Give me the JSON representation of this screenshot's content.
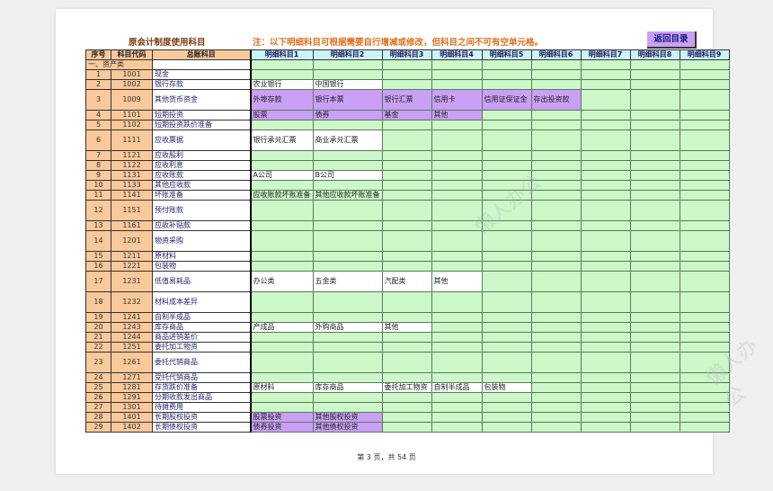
{
  "title": "原会计制度使用科目",
  "note": "注：以下明细科目可根据需要自行增减或修改，但科目之间不可有空单元格。",
  "back_button": "返回目录",
  "headers": {
    "seq": "序号",
    "code": "科目代码",
    "name": "总账科目",
    "details": [
      "明细科目1",
      "明细科目2",
      "明细科目3",
      "明细科目4",
      "明细科目5",
      "明细科目6",
      "明细科目7",
      "明细科目8",
      "明细科目9"
    ]
  },
  "category": "一、资产类",
  "colors": {
    "header_left": "#f9c89b",
    "header_right": "#ccf3f7",
    "detail_bg": "#ccf7c8",
    "highlight_purple": "#c9a0f5",
    "title": "#7a3b0c",
    "note": "#e0701c"
  },
  "rows": [
    {
      "seq": "1",
      "code": "1001",
      "name": "现金",
      "details": [],
      "fill": ""
    },
    {
      "seq": "2",
      "code": "1002",
      "name": "银行存款",
      "details": [
        "农业银行",
        "中国银行"
      ],
      "fill": "white"
    },
    {
      "seq": "3",
      "code": "1009",
      "name": "其他货币资金",
      "details": [
        "外埠存款",
        "银行本票",
        "银行汇票",
        "信用卡",
        "信用证保证金",
        "存出投资款"
      ],
      "fill": "purple",
      "tall": true
    },
    {
      "seq": "4",
      "code": "1101",
      "name": "短期投资",
      "details": [
        "股票",
        "债券",
        "基金",
        "其他"
      ],
      "fill": "purple"
    },
    {
      "seq": "5",
      "code": "1102",
      "name": "短期投资跌价准备",
      "details": [],
      "fill": ""
    },
    {
      "seq": "6",
      "code": "1111",
      "name": "应收票据",
      "details": [
        "银行承兑汇票",
        "商业承兑汇票"
      ],
      "fill": "white",
      "tall": true
    },
    {
      "seq": "7",
      "code": "1121",
      "name": "应收股利",
      "details": [],
      "fill": ""
    },
    {
      "seq": "8",
      "code": "1122",
      "name": "应收利息",
      "details": [],
      "fill": ""
    },
    {
      "seq": "9",
      "code": "1131",
      "name": "应收账款",
      "details": [
        "A公司",
        "B公司"
      ],
      "fill": "white"
    },
    {
      "seq": "10",
      "code": "1133",
      "name": "其他应收款",
      "details": [],
      "fill": ""
    },
    {
      "seq": "11",
      "code": "1141",
      "name": "坏账准备",
      "details": [
        "应收账款坏账准备",
        "其他应收款坏账准备"
      ],
      "fill": ""
    },
    {
      "seq": "12",
      "code": "1151",
      "name": "预付账款",
      "details": [],
      "fill": "",
      "tall": true
    },
    {
      "seq": "13",
      "code": "1161",
      "name": "应收补贴款",
      "details": [],
      "fill": ""
    },
    {
      "seq": "14",
      "code": "1201",
      "name": "物资采购",
      "details": [],
      "fill": "",
      "tall": true
    },
    {
      "seq": "15",
      "code": "1211",
      "name": "原材料",
      "details": [],
      "fill": ""
    },
    {
      "seq": "16",
      "code": "1221",
      "name": "包装物",
      "details": [],
      "fill": ""
    },
    {
      "seq": "17",
      "code": "1231",
      "name": "低值易耗品",
      "details": [
        "办公类",
        "五金类",
        "汽配类",
        "其他"
      ],
      "fill": "white",
      "tall": true
    },
    {
      "seq": "18",
      "code": "1232",
      "name": "材料成本差异",
      "details": [],
      "fill": "",
      "tall": true
    },
    {
      "seq": "19",
      "code": "1241",
      "name": "自制半成品",
      "details": [],
      "fill": ""
    },
    {
      "seq": "20",
      "code": "1243",
      "name": "库存商品",
      "details": [
        "产成品",
        "外购商品",
        "其他"
      ],
      "fill": "white"
    },
    {
      "seq": "21",
      "code": "1244",
      "name": "商品进销差价",
      "details": [],
      "fill": ""
    },
    {
      "seq": "22",
      "code": "1251",
      "name": "委托加工物资",
      "details": [],
      "fill": ""
    },
    {
      "seq": "23",
      "code": "1261",
      "name": "委托代销商品",
      "details": [],
      "fill": "",
      "tall": true
    },
    {
      "seq": "24",
      "code": "1271",
      "name": "受托代销商品",
      "details": [],
      "fill": ""
    },
    {
      "seq": "25",
      "code": "1281",
      "name": "存货跌价准备",
      "details": [
        "原材料",
        "库存商品",
        "委托加工物资",
        "自制半成品",
        "包装物"
      ],
      "fill": "white"
    },
    {
      "seq": "26",
      "code": "1291",
      "name": "分期收款发出商品",
      "details": [],
      "fill": ""
    },
    {
      "seq": "27",
      "code": "1301",
      "name": "待摊费用",
      "details": [],
      "fill": ""
    },
    {
      "seq": "28",
      "code": "1401",
      "name": "长期股权投资",
      "details": [
        "股票投资",
        "其他股权投资"
      ],
      "fill": "purple"
    },
    {
      "seq": "29",
      "code": "1402",
      "name": "长期债权投资",
      "details": [
        "债券投资",
        "其他债权投资"
      ],
      "fill": "purple"
    }
  ],
  "footer": "第 3 页，共 54 页",
  "watermark": "懒人办公"
}
